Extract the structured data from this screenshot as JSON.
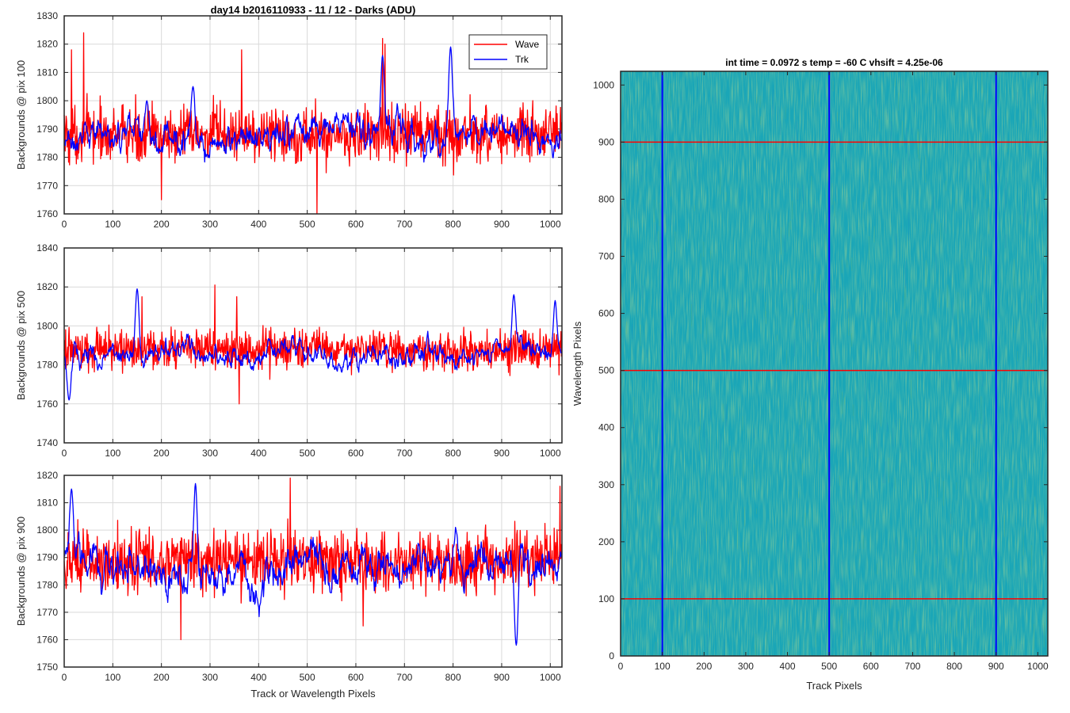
{
  "figure_title": "day14 b2016110933 - 11 / 12 - Darks (ADU)",
  "colors": {
    "wave": "#ff0000",
    "trk": "#0000ff",
    "image_base": "#1aa6b7",
    "grid": "#d9d9d9"
  },
  "chart_data": [
    {
      "type": "line",
      "title": "day14 b2016110933 - 11 / 12 - Darks (ADU)",
      "xlabel": "",
      "ylabel": "Backgrounds @ pix 100",
      "xlim": [
        0,
        1024
      ],
      "ylim": [
        1760,
        1830
      ],
      "xticks": [
        0,
        100,
        200,
        300,
        400,
        500,
        600,
        700,
        800,
        900,
        1000
      ],
      "yticks": [
        1760,
        1770,
        1780,
        1790,
        1800,
        1810,
        1820,
        1830
      ],
      "grid": true,
      "legend": {
        "position": "top-right",
        "entries": [
          "Wave",
          "Trk"
        ]
      },
      "series": [
        {
          "name": "Wave",
          "color": "#ff0000",
          "mean": 1788,
          "noise": 7,
          "spikes": [
            [
              40,
              1824
            ],
            [
              655,
              1822
            ],
            [
              660,
              1820
            ],
            [
              15,
              1818
            ],
            [
              520,
              1760
            ],
            [
              200,
              1765
            ],
            [
              365,
              1818
            ]
          ]
        },
        {
          "name": "Trk",
          "color": "#0000ff",
          "mean": 1786,
          "noise": 4,
          "peaks": [
            [
              655,
              1816
            ],
            [
              795,
              1819
            ],
            [
              170,
              1800
            ],
            [
              265,
              1805
            ]
          ]
        }
      ]
    },
    {
      "type": "line",
      "xlabel": "",
      "ylabel": "Backgrounds @ pix 500",
      "xlim": [
        0,
        1024
      ],
      "ylim": [
        1740,
        1840
      ],
      "xticks": [
        0,
        100,
        200,
        300,
        400,
        500,
        600,
        700,
        800,
        900,
        1000
      ],
      "yticks": [
        1740,
        1760,
        1780,
        1800,
        1820,
        1840
      ],
      "grid": true,
      "series": [
        {
          "name": "Wave",
          "color": "#ff0000",
          "mean": 1788,
          "noise": 7,
          "spikes": [
            [
              310,
              1821
            ],
            [
              160,
              1815
            ],
            [
              355,
              1815
            ],
            [
              360,
              1760
            ]
          ]
        },
        {
          "name": "Trk",
          "color": "#0000ff",
          "mean": 1786,
          "noise": 4,
          "peaks": [
            [
              150,
              1819
            ],
            [
              925,
              1816
            ],
            [
              1010,
              1813
            ],
            [
              10,
              1762
            ]
          ]
        }
      ]
    },
    {
      "type": "line",
      "xlabel": "Track or Wavelength Pixels",
      "ylabel": "Backgrounds @ pix 900",
      "xlim": [
        0,
        1024
      ],
      "ylim": [
        1750,
        1820
      ],
      "xticks": [
        0,
        100,
        200,
        300,
        400,
        500,
        600,
        700,
        800,
        900,
        1000
      ],
      "yticks": [
        1750,
        1760,
        1770,
        1780,
        1790,
        1800,
        1810,
        1820
      ],
      "grid": true,
      "series": [
        {
          "name": "Wave",
          "color": "#ff0000",
          "mean": 1789,
          "noise": 8,
          "spikes": [
            [
              465,
              1819
            ],
            [
              1020,
              1816
            ],
            [
              240,
              1760
            ],
            [
              615,
              1765
            ]
          ]
        },
        {
          "name": "Trk",
          "color": "#0000ff",
          "mean": 1787,
          "noise": 5,
          "peaks": [
            [
              270,
              1817
            ],
            [
              15,
              1815
            ],
            [
              930,
              1758
            ]
          ]
        }
      ]
    },
    {
      "type": "heatmap",
      "title": "int time = 0.0972 s    temp = -60 C    vhsift = 4.25e-06",
      "xlabel": "Track Pixels",
      "ylabel": "Wavelength Pixels",
      "xlim": [
        0,
        1024
      ],
      "ylim": [
        0,
        1024
      ],
      "xticks": [
        0,
        100,
        200,
        300,
        400,
        500,
        600,
        700,
        800,
        900,
        1000
      ],
      "yticks": [
        0,
        100,
        200,
        300,
        400,
        500,
        600,
        700,
        800,
        900,
        1000
      ],
      "vertical_lines": {
        "x": [
          100,
          500,
          900
        ],
        "color": "#0000ff"
      },
      "horizontal_lines": {
        "y": [
          100,
          500,
          900
        ],
        "color": "#ff0000"
      }
    }
  ]
}
